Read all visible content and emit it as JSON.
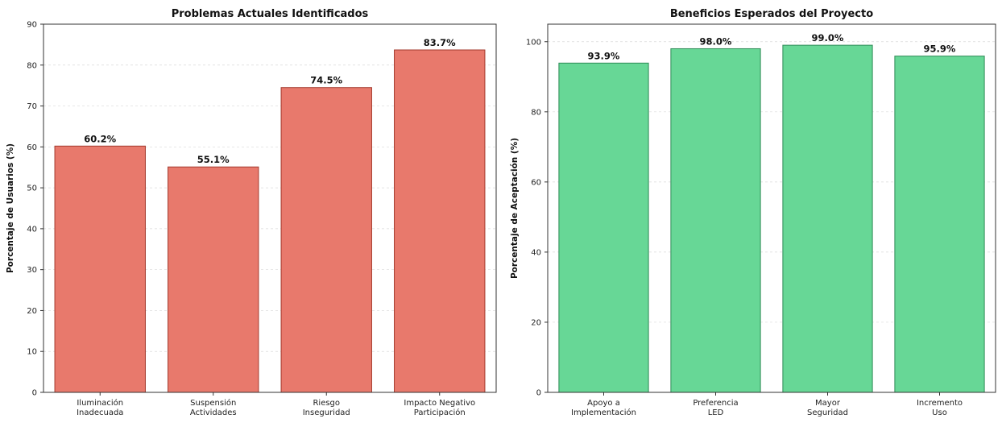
{
  "chart_data": [
    {
      "type": "bar",
      "title": "Problemas Actuales Identificados",
      "xlabel": "",
      "ylabel": "Porcentaje de Usuarios (%)",
      "categories": [
        [
          "Iluminación",
          "Inadecuada"
        ],
        [
          "Suspensión",
          "Actividades"
        ],
        [
          "Riesgo",
          "Inseguridad"
        ],
        [
          "Impacto Negativo",
          "Participación"
        ]
      ],
      "values": [
        60.2,
        55.1,
        74.5,
        83.7
      ],
      "data_labels": [
        "60.2%",
        "55.1%",
        "74.5%",
        "83.7%"
      ],
      "ylim": [
        0,
        90
      ],
      "yticks": [
        0,
        10,
        20,
        30,
        40,
        50,
        60,
        70,
        80,
        90
      ],
      "grid": true,
      "color": "#e8796c",
      "edge_color": "#a33a2e"
    },
    {
      "type": "bar",
      "title": "Beneficios Esperados del Proyecto",
      "xlabel": "",
      "ylabel": "Porcentaje de Aceptación (%)",
      "categories": [
        [
          "Apoyo a",
          "Implementación"
        ],
        [
          "Preferencia",
          "LED"
        ],
        [
          "Mayor",
          "Seguridad"
        ],
        [
          "Incremento",
          "Uso"
        ]
      ],
      "values": [
        93.9,
        98.0,
        99.0,
        95.9
      ],
      "data_labels": [
        "93.9%",
        "98.0%",
        "99.0%",
        "95.9%"
      ],
      "ylim": [
        0,
        105
      ],
      "yticks": [
        0,
        20,
        40,
        60,
        80,
        100
      ],
      "grid": true,
      "color": "#67d796",
      "edge_color": "#2e8b57"
    }
  ]
}
